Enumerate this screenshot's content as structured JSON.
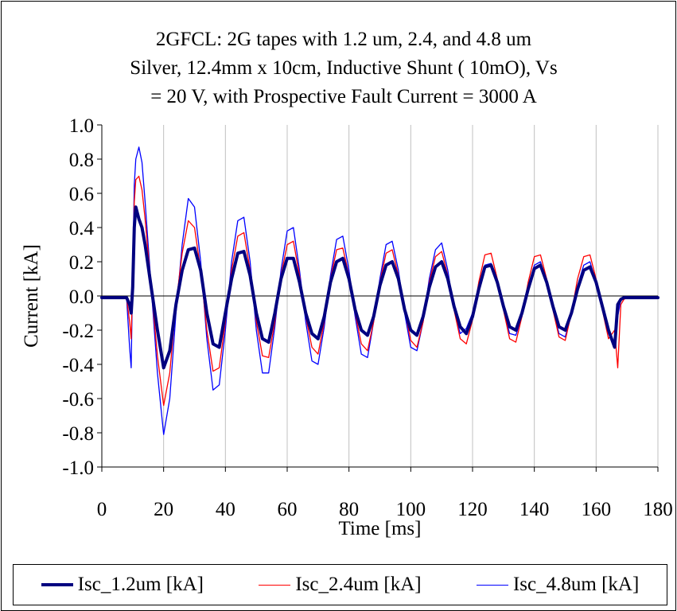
{
  "chart_data": {
    "type": "line",
    "title_lines": [
      "2GFCL: 2G tapes with 1.2 um, 2.4, and 4.8 um",
      "Silver, 12.4mm x 10cm, Inductive Shunt ( 10mO), Vs",
      "= 20 V, with Prospective Fault Current = 3000 A"
    ],
    "xlabel": "Time [ms]",
    "ylabel": "Current [kA]",
    "xlim": [
      0,
      180
    ],
    "ylim": [
      -1.0,
      1.0
    ],
    "x_ticks": [
      "0",
      "20",
      "40",
      "60",
      "80",
      "100",
      "120",
      "140",
      "160",
      "180"
    ],
    "y_ticks": [
      "1.0",
      "0.8",
      "0.6",
      "0.4",
      "0.2",
      "0.0",
      "-0.2",
      "-0.4",
      "-0.6",
      "-0.8",
      "-1.0"
    ],
    "grid": "vertical",
    "legend_position": "bottom",
    "series": [
      {
        "name": "Isc_1.2um [kA]",
        "color": "#000080",
        "x": [
          0,
          8,
          9,
          9.5,
          10,
          10.5,
          11,
          12,
          13,
          14,
          16,
          18,
          20,
          22,
          24,
          26,
          28,
          30,
          32,
          34,
          36,
          38,
          40,
          42,
          44,
          46,
          48,
          50,
          52,
          54,
          56,
          58,
          60,
          62,
          64,
          66,
          68,
          70,
          72,
          74,
          76,
          78,
          80,
          82,
          84,
          86,
          88,
          90,
          92,
          94,
          96,
          98,
          100,
          102,
          104,
          106,
          108,
          110,
          112,
          114,
          116,
          118,
          120,
          122,
          124,
          126,
          128,
          130,
          132,
          134,
          136,
          138,
          140,
          142,
          144,
          146,
          148,
          150,
          152,
          154,
          156,
          158,
          160,
          162,
          164,
          166,
          167,
          168,
          169,
          170,
          172,
          175,
          180
        ],
        "y": [
          -0.01,
          -0.01,
          -0.05,
          -0.1,
          0.05,
          0.4,
          0.52,
          0.45,
          0.4,
          0.3,
          0.05,
          -0.2,
          -0.42,
          -0.32,
          -0.05,
          0.15,
          0.27,
          0.28,
          0.15,
          -0.1,
          -0.28,
          -0.3,
          -0.1,
          0.1,
          0.25,
          0.26,
          0.12,
          -0.1,
          -0.25,
          -0.27,
          -0.1,
          0.1,
          0.22,
          0.22,
          0.08,
          -0.1,
          -0.22,
          -0.25,
          -0.12,
          0.08,
          0.2,
          0.22,
          0.1,
          -0.08,
          -0.2,
          -0.23,
          -0.12,
          0.06,
          0.18,
          0.2,
          0.1,
          -0.08,
          -0.2,
          -0.23,
          -0.12,
          0.05,
          0.17,
          0.2,
          0.1,
          -0.06,
          -0.18,
          -0.22,
          -0.12,
          0.04,
          0.17,
          0.18,
          0.08,
          -0.06,
          -0.18,
          -0.2,
          -0.1,
          0.04,
          0.16,
          0.18,
          0.08,
          -0.06,
          -0.18,
          -0.2,
          -0.1,
          0.04,
          0.15,
          0.17,
          0.08,
          -0.06,
          -0.2,
          -0.3,
          -0.05,
          -0.02,
          -0.01,
          -0.01,
          -0.01,
          -0.01,
          -0.01
        ]
      },
      {
        "name": "Isc_2.4um [kA]",
        "color": "#ff0000",
        "x": [
          0,
          8,
          9,
          9.5,
          10,
          10.5,
          11,
          12,
          13,
          14,
          16,
          18,
          20,
          22,
          24,
          26,
          28,
          30,
          32,
          34,
          36,
          38,
          40,
          42,
          44,
          46,
          48,
          50,
          52,
          54,
          56,
          58,
          60,
          62,
          64,
          66,
          68,
          70,
          72,
          74,
          76,
          78,
          80,
          82,
          84,
          86,
          88,
          90,
          92,
          94,
          96,
          98,
          100,
          102,
          104,
          106,
          108,
          110,
          112,
          114,
          116,
          118,
          120,
          122,
          124,
          126,
          128,
          130,
          132,
          134,
          136,
          138,
          140,
          142,
          144,
          146,
          148,
          150,
          152,
          154,
          156,
          158,
          160,
          162,
          164,
          166,
          167,
          168,
          169,
          170,
          172,
          175,
          180
        ],
        "y": [
          -0.01,
          -0.01,
          -0.15,
          -0.25,
          0.1,
          0.55,
          0.68,
          0.7,
          0.62,
          0.45,
          0.05,
          -0.35,
          -0.64,
          -0.45,
          -0.05,
          0.25,
          0.44,
          0.4,
          0.15,
          -0.2,
          -0.44,
          -0.42,
          -0.15,
          0.15,
          0.35,
          0.37,
          0.15,
          -0.15,
          -0.35,
          -0.36,
          -0.15,
          0.12,
          0.3,
          0.32,
          0.12,
          -0.12,
          -0.3,
          -0.34,
          -0.15,
          0.1,
          0.27,
          0.28,
          0.12,
          -0.1,
          -0.28,
          -0.32,
          -0.15,
          0.08,
          0.25,
          0.27,
          0.12,
          -0.08,
          -0.26,
          -0.3,
          -0.15,
          0.08,
          0.23,
          0.26,
          0.12,
          -0.08,
          -0.25,
          -0.28,
          -0.14,
          0.08,
          0.24,
          0.25,
          0.1,
          -0.08,
          -0.25,
          -0.27,
          -0.12,
          0.08,
          0.23,
          0.24,
          0.1,
          -0.08,
          -0.24,
          -0.26,
          -0.1,
          0.1,
          0.23,
          0.24,
          0.1,
          -0.08,
          -0.25,
          -0.2,
          -0.42,
          -0.05,
          -0.02,
          -0.01,
          -0.01,
          -0.01,
          -0.01
        ]
      },
      {
        "name": "Isc_4.8um [kA]",
        "color": "#0000ff",
        "x": [
          0,
          8,
          9,
          9.5,
          10,
          10.5,
          11,
          12,
          13,
          14,
          16,
          18,
          20,
          22,
          24,
          26,
          28,
          30,
          32,
          34,
          36,
          38,
          40,
          42,
          44,
          46,
          48,
          50,
          52,
          54,
          56,
          58,
          60,
          62,
          64,
          66,
          68,
          70,
          72,
          74,
          76,
          78,
          80,
          82,
          84,
          86,
          88,
          90,
          92,
          94,
          96,
          98,
          100,
          102,
          104,
          106,
          108,
          110,
          112,
          114,
          116,
          118,
          120,
          122,
          124,
          126,
          128,
          130,
          132,
          134,
          136,
          138,
          140,
          142,
          144,
          146,
          148,
          150,
          152,
          154,
          156,
          158,
          160,
          162,
          164,
          166,
          167,
          168,
          169,
          170,
          172,
          175,
          180
        ],
        "y": [
          -0.01,
          -0.01,
          -0.3,
          -0.42,
          0.15,
          0.65,
          0.8,
          0.87,
          0.78,
          0.55,
          0.05,
          -0.45,
          -0.81,
          -0.6,
          -0.1,
          0.3,
          0.57,
          0.52,
          0.2,
          -0.25,
          -0.55,
          -0.52,
          -0.2,
          0.2,
          0.44,
          0.46,
          0.2,
          -0.2,
          -0.45,
          -0.45,
          -0.18,
          0.15,
          0.38,
          0.4,
          0.15,
          -0.15,
          -0.38,
          -0.4,
          -0.18,
          0.12,
          0.33,
          0.35,
          0.15,
          -0.12,
          -0.34,
          -0.36,
          -0.15,
          0.1,
          0.3,
          0.32,
          0.15,
          -0.1,
          -0.3,
          -0.32,
          -0.15,
          0.1,
          0.27,
          0.31,
          0.15,
          -0.08,
          -0.22,
          -0.19,
          -0.1,
          0.06,
          0.18,
          0.19,
          0.08,
          -0.08,
          -0.22,
          -0.23,
          -0.12,
          0.05,
          0.18,
          0.2,
          0.08,
          -0.08,
          -0.22,
          -0.24,
          -0.1,
          0.06,
          0.18,
          0.2,
          0.08,
          -0.08,
          -0.22,
          -0.3,
          -0.12,
          -0.02,
          -0.01,
          -0.01,
          -0.01,
          -0.01,
          -0.01
        ]
      }
    ]
  }
}
